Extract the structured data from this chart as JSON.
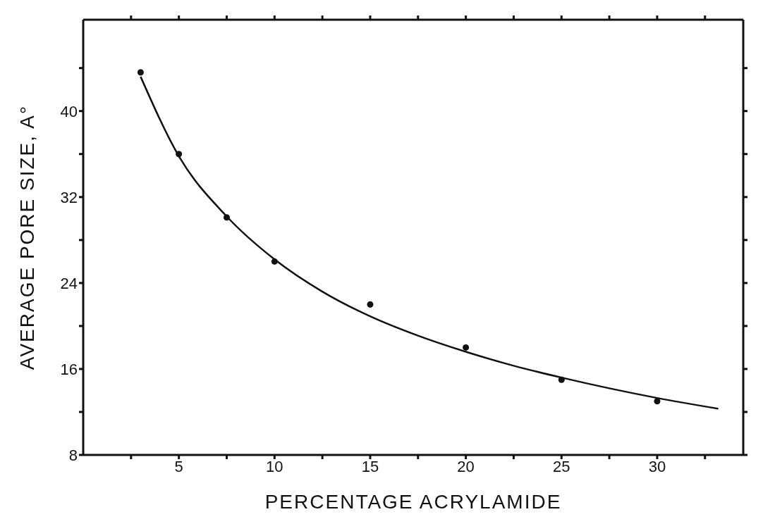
{
  "chart_data": {
    "type": "scatter",
    "xlabel": "PERCENTAGE ACRYLAMIDE",
    "ylabel": "AVERAGE PORE SIZE, A°",
    "xlim": [
      0,
      34.5
    ],
    "ylim": [
      8,
      48.5
    ],
    "xticks": [
      {
        "value": 2.5,
        "label": null
      },
      5,
      {
        "value": 7.5,
        "label": null
      },
      10,
      {
        "value": 12.5,
        "label": null
      },
      15,
      {
        "value": 17.5,
        "label": null
      },
      20,
      {
        "value": 22.5,
        "label": null
      },
      25,
      {
        "value": 27.5,
        "label": null
      },
      30,
      {
        "value": 32.5,
        "label": null
      }
    ],
    "yticks": [
      8,
      {
        "value": 12,
        "label": null
      },
      16,
      {
        "value": 20,
        "label": null
      },
      24,
      {
        "value": 28,
        "label": null
      },
      32,
      {
        "value": 36,
        "label": null
      },
      40,
      {
        "value": 44,
        "label": null
      }
    ],
    "legend": false,
    "series": [
      {
        "marker": "circle",
        "color": "#111111",
        "x": [
          3,
          5,
          7.5,
          10,
          15,
          20,
          25,
          30
        ],
        "values": [
          43.6,
          36.0,
          30.1,
          26.0,
          22.0,
          18.0,
          15.0,
          13.0
        ]
      },
      {
        "type": "line",
        "marker": "none",
        "color": "#111111",
        "line_style": "solid",
        "x": [
          3,
          5,
          7.5,
          10,
          12.5,
          15,
          17.5,
          20,
          22.5,
          25,
          27.5,
          30,
          33.2
        ],
        "values": [
          43.2,
          35.8,
          30.2,
          26.2,
          23.2,
          20.9,
          19.1,
          17.6,
          16.3,
          15.2,
          14.2,
          13.3,
          12.3
        ]
      }
    ]
  }
}
